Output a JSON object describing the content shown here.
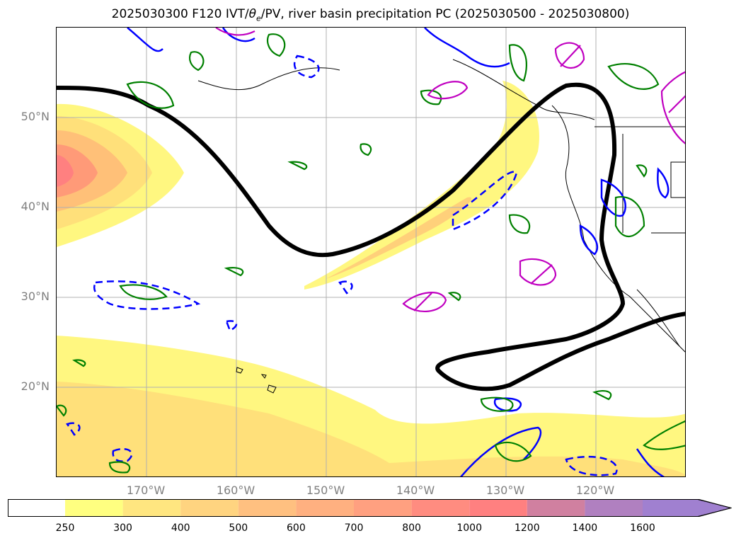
{
  "title_prefix": "2025030300 F120 IVT/",
  "title_theta": "θ",
  "title_sub": "e",
  "title_suffix": "/PV, river basin precipitation PC (2025030500 - 2025030800)",
  "map": {
    "lat_labels": [
      "50°N",
      "40°N",
      "30°N",
      "20°N"
    ],
    "lon_labels": [
      "170°W",
      "160°W",
      "150°W",
      "140°W",
      "130°W",
      "120°W"
    ],
    "gridlines": true
  },
  "colors": {
    "contour_theta_e": "#000000",
    "contour_pv_solid": "#0000ff",
    "contour_pv_dashed": "#0000ff",
    "contour_green": "#008000",
    "contour_magenta": "#c000c0",
    "coastline": "#000000"
  },
  "colorbar": {
    "levels": [
      "250",
      "300",
      "400",
      "500",
      "600",
      "700",
      "800",
      "1000",
      "1200",
      "1400",
      "1600"
    ],
    "colors": [
      "#ffffff",
      "#ffff80",
      "#ffe680",
      "#ffd480",
      "#ffc080",
      "#ffb080",
      "#ffa080",
      "#ff8c80",
      "#ff8080",
      "#d080a0",
      "#b080c0",
      "#a080d0"
    ],
    "extend": "max"
  }
}
